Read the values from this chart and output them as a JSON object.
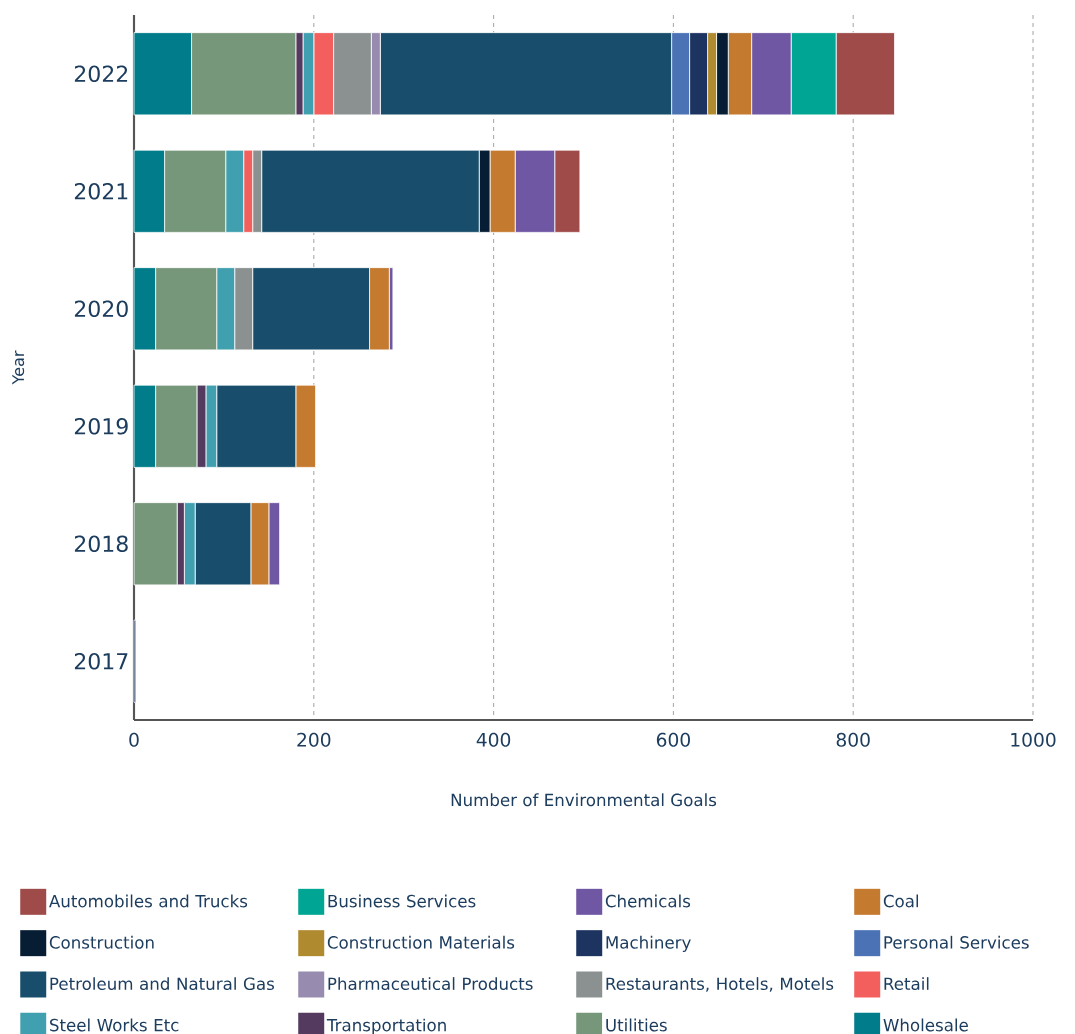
{
  "chart_data": {
    "type": "bar",
    "orientation": "horizontal",
    "stacked": true,
    "xlabel": "Number of Environmental Goals",
    "ylabel": "Year",
    "categories": [
      "2022",
      "2021",
      "2020",
      "2019",
      "2018",
      "2017"
    ],
    "series": [
      {
        "name": "Wholesale",
        "color": "#007c8a",
        "values": [
          64,
          34,
          24,
          24,
          0,
          0
        ]
      },
      {
        "name": "Utilities",
        "color": "#77977a",
        "values": [
          116,
          68,
          68,
          46,
          48,
          0
        ]
      },
      {
        "name": "Transportation",
        "color": "#553a60",
        "values": [
          8,
          0,
          0,
          10,
          8,
          0
        ]
      },
      {
        "name": "Steel Works Etc",
        "color": "#40a0b0",
        "values": [
          12,
          20,
          20,
          12,
          12,
          0
        ]
      },
      {
        "name": "Retail",
        "color": "#f25f5c",
        "values": [
          22,
          10,
          0,
          0,
          0,
          0
        ]
      },
      {
        "name": "Restaurants, Hotels, Motels",
        "color": "#8a9190",
        "values": [
          42,
          10,
          20,
          0,
          0,
          0
        ]
      },
      {
        "name": "Pharmaceutical Products",
        "color": "#978cb0",
        "values": [
          10,
          0,
          0,
          0,
          0,
          0
        ]
      },
      {
        "name": "Petroleum and Natural Gas",
        "color": "#184e6b",
        "values": [
          324,
          242,
          130,
          88,
          62,
          0
        ]
      },
      {
        "name": "Personal Services",
        "color": "#4a72b5",
        "values": [
          20,
          0,
          0,
          0,
          0,
          0
        ]
      },
      {
        "name": "Machinery",
        "color": "#1d3461",
        "values": [
          20,
          0,
          0,
          0,
          0,
          2
        ]
      },
      {
        "name": "Construction Materials",
        "color": "#b08a2e",
        "values": [
          10,
          0,
          0,
          0,
          0,
          0
        ]
      },
      {
        "name": "Construction",
        "color": "#071d33",
        "values": [
          13,
          12,
          0,
          0,
          0,
          0
        ]
      },
      {
        "name": "Coal",
        "color": "#c47a2f",
        "values": [
          26,
          28,
          22,
          22,
          20,
          0
        ]
      },
      {
        "name": "Chemicals",
        "color": "#7057a3",
        "values": [
          44,
          44,
          4,
          0,
          12,
          0
        ]
      },
      {
        "name": "Business Services",
        "color": "#00a693",
        "values": [
          50,
          0,
          0,
          0,
          0,
          0
        ]
      },
      {
        "name": "Automobiles and Trucks",
        "color": "#9e4b4a",
        "values": [
          65,
          28,
          0,
          0,
          0,
          0
        ]
      }
    ],
    "xlim": [
      0,
      1000
    ],
    "xticks": [
      0,
      200,
      400,
      600,
      800,
      1000
    ],
    "grid": "x",
    "legend": "bottom"
  }
}
